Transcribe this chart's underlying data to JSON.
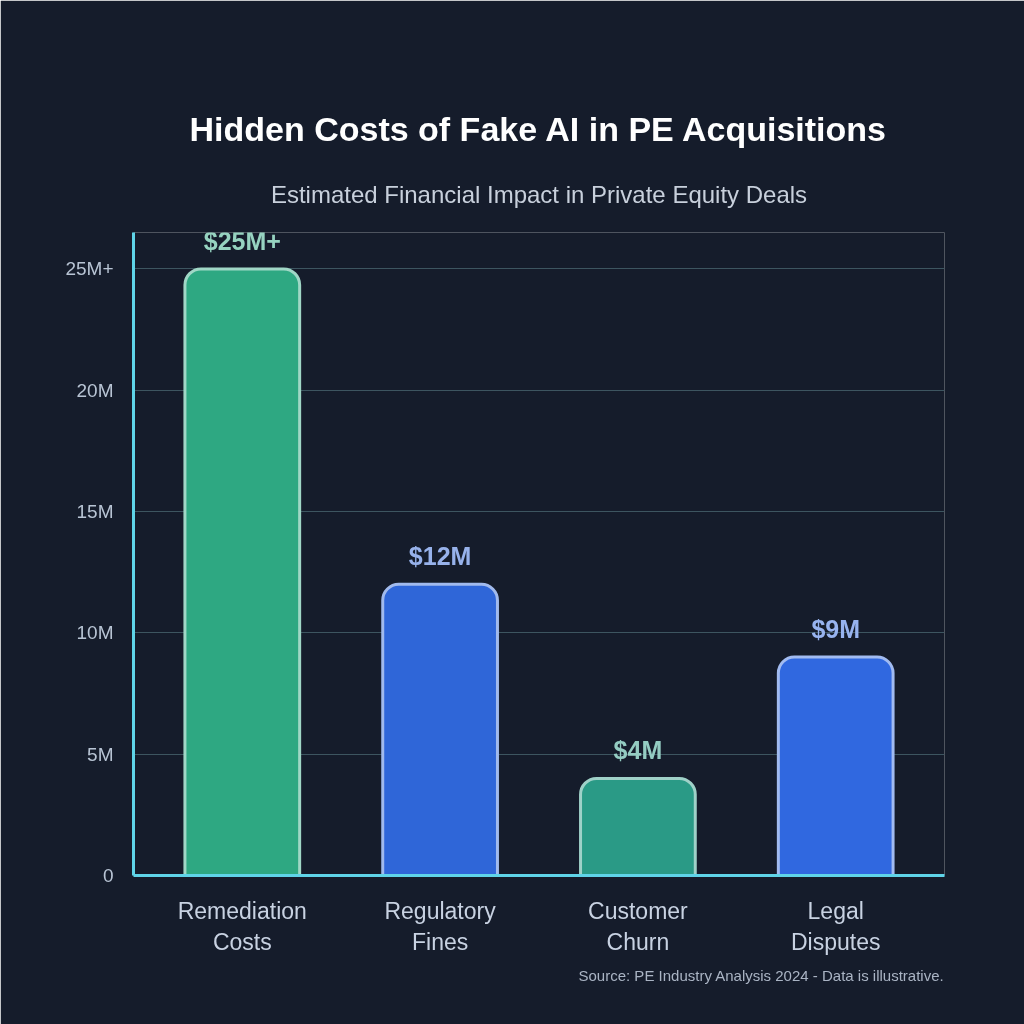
{
  "chart_data": {
    "type": "bar",
    "title": "Hidden Costs of Fake AI in PE Acquisitions",
    "subtitle": "Estimated Financial Impact in Private Equity Deals",
    "categories": [
      "Remediation Costs",
      "Regulatory Fines",
      "Customer Churn",
      "Legal Disputes"
    ],
    "values": [
      25,
      12,
      4,
      9
    ],
    "value_labels": [
      "$25M+",
      "$12M",
      "$4M",
      "$9M"
    ],
    "colors": [
      "#2ea882",
      "#2f66d8",
      "#2a9a86",
      "#3068e0"
    ],
    "ylim": [
      0,
      26.5
    ],
    "yticks": [
      0,
      {
        "value": 5,
        "label": "5M"
      },
      {
        "value": 10,
        "label": "10M"
      },
      {
        "value": 15,
        "label": "15M"
      },
      {
        "value": 20,
        "label": "20M"
      },
      {
        "value": 25,
        "label": "25M+"
      }
    ],
    "grid": "y",
    "annotations": [
      "Source: PE Industry Analysis 2024 - Data is illustrative."
    ]
  }
}
